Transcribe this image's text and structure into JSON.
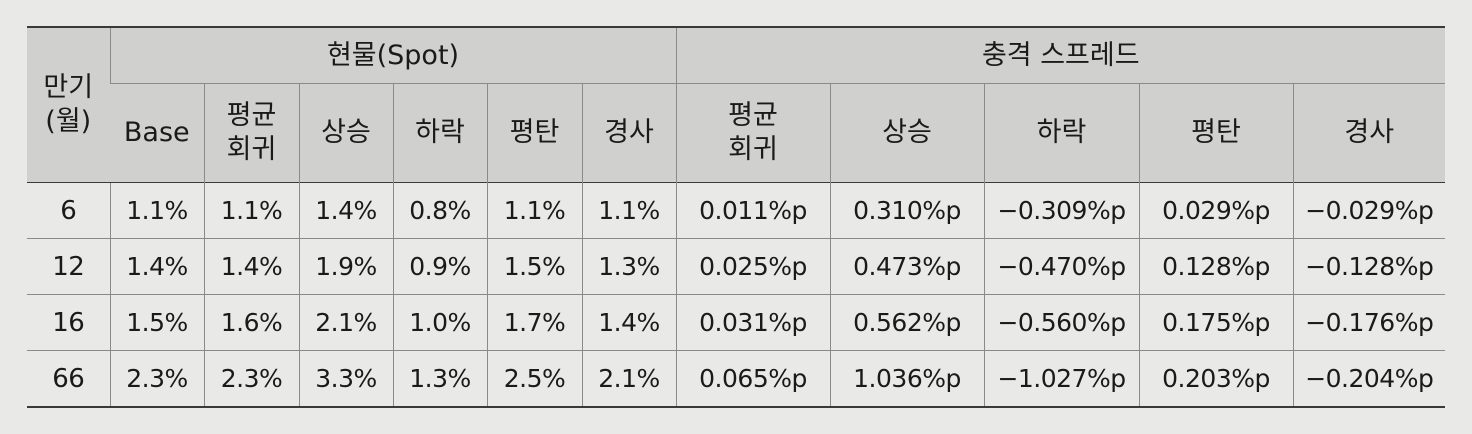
{
  "table": {
    "maturity_header_line1": "만기",
    "maturity_header_line2": "(월)",
    "group_spot": "현물(Spot)",
    "group_spread": "충격 스프레드",
    "spot_columns": [
      {
        "line1": "Base",
        "line2": ""
      },
      {
        "line1": "평균",
        "line2": "회귀"
      },
      {
        "line1": "상승",
        "line2": ""
      },
      {
        "line1": "하락",
        "line2": ""
      },
      {
        "line1": "평탄",
        "line2": ""
      },
      {
        "line1": "경사",
        "line2": ""
      }
    ],
    "spread_columns": [
      {
        "line1": "평균",
        "line2": "회귀"
      },
      {
        "line1": "상승",
        "line2": ""
      },
      {
        "line1": "하락",
        "line2": ""
      },
      {
        "line1": "평탄",
        "line2": ""
      },
      {
        "line1": "경사",
        "line2": ""
      }
    ],
    "rows": [
      {
        "maturity": "6",
        "spot": [
          "1.1%",
          "1.1%",
          "1.4%",
          "0.8%",
          "1.1%",
          "1.1%"
        ],
        "spread": [
          "0.011%p",
          "0.310%p",
          "−0.309%p",
          "0.029%p",
          "−0.029%p"
        ]
      },
      {
        "maturity": "12",
        "spot": [
          "1.4%",
          "1.4%",
          "1.9%",
          "0.9%",
          "1.5%",
          "1.3%"
        ],
        "spread": [
          "0.025%p",
          "0.473%p",
          "−0.470%p",
          "0.128%p",
          "−0.128%p"
        ]
      },
      {
        "maturity": "16",
        "spot": [
          "1.5%",
          "1.6%",
          "2.1%",
          "1.0%",
          "1.7%",
          "1.4%"
        ],
        "spread": [
          "0.031%p",
          "0.562%p",
          "−0.560%p",
          "0.175%p",
          "−0.176%p"
        ]
      },
      {
        "maturity": "66",
        "spot": [
          "2.3%",
          "2.3%",
          "3.3%",
          "1.3%",
          "2.5%",
          "2.1%"
        ],
        "spread": [
          "0.065%p",
          "1.036%p",
          "−1.027%p",
          "0.203%p",
          "−0.204%p"
        ]
      }
    ]
  }
}
